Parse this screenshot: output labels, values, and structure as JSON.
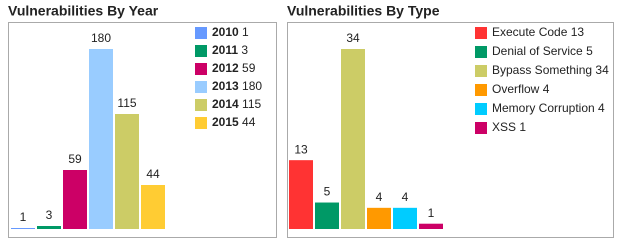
{
  "chart_data": [
    {
      "type": "bar",
      "title": "Vulnerabilities By Year",
      "categories": [
        "2010",
        "2011",
        "2012",
        "2013",
        "2014",
        "2015"
      ],
      "values": [
        1,
        3,
        59,
        180,
        115,
        44
      ],
      "colors": [
        "#6699ff",
        "#009966",
        "#cc0066",
        "#99ccff",
        "#cccc66",
        "#ffcc33"
      ],
      "legend_bold_categories": true
    },
    {
      "type": "bar",
      "title": "Vulnerabilities By Type",
      "categories": [
        "Execute Code",
        "Denial of Service",
        "Bypass Something",
        "Overflow",
        "Memory Corruption",
        "XSS"
      ],
      "values": [
        13,
        5,
        34,
        4,
        4,
        1
      ],
      "colors": [
        "#ff3333",
        "#009966",
        "#cccc66",
        "#ff9900",
        "#00ccff",
        "#cc0066"
      ],
      "legend_bold_categories": false
    }
  ]
}
